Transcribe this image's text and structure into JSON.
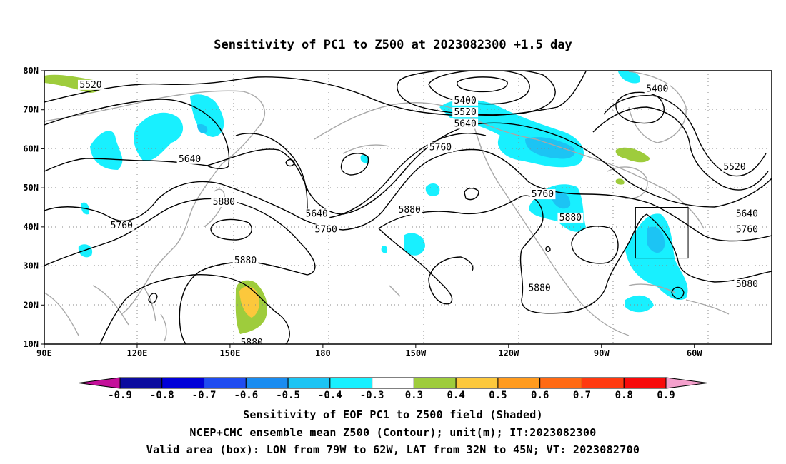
{
  "title": "Sensitivity of PC1 to Z500 at 2023082300 +1.5 day",
  "axes": {
    "lon_ticks": [
      "90E",
      "120E",
      "150E",
      "180",
      "150W",
      "120W",
      "90W",
      "60W"
    ],
    "lon_values": [
      90,
      120,
      150,
      180,
      210,
      240,
      270,
      300
    ],
    "lat_ticks": [
      "80N",
      "70N",
      "60N",
      "50N",
      "40N",
      "30N",
      "20N",
      "10N"
    ],
    "lat_values": [
      80,
      70,
      60,
      50,
      40,
      30,
      20,
      10
    ],
    "lon_range": [
      90,
      325
    ],
    "lat_range": [
      10,
      80
    ],
    "grid": true
  },
  "colorbar": {
    "labels": [
      "-0.9",
      "-0.8",
      "-0.7",
      "-0.6",
      "-0.5",
      "-0.4",
      "-0.3",
      "0.3",
      "0.4",
      "0.5",
      "0.6",
      "0.7",
      "0.8",
      "0.9"
    ],
    "colors": [
      "#0b0b9e",
      "#0000d8",
      "#1f4cf0",
      "#1a8cf0",
      "#1cc4f4",
      "#18f0ff",
      "#ffffff",
      "#9ecc3c",
      "#fcc83c",
      "#ff9b1e",
      "#ff6a14",
      "#ff3a10",
      "#f80a0a"
    ],
    "low_extend_color": "#c4109a",
    "high_extend_color": "#f4a0cc"
  },
  "contour_labels": [
    {
      "text": "5520",
      "lon": 105,
      "lat": 76
    },
    {
      "text": "5640",
      "lon": 137,
      "lat": 57
    },
    {
      "text": "5880",
      "lon": 148,
      "lat": 46
    },
    {
      "text": "5760",
      "lon": 115,
      "lat": 40
    },
    {
      "text": "5880",
      "lon": 155,
      "lat": 31
    },
    {
      "text": "5880",
      "lon": 157,
      "lat": 10
    },
    {
      "text": "5640",
      "lon": 178,
      "lat": 43
    },
    {
      "text": "5760",
      "lon": 181,
      "lat": 39
    },
    {
      "text": "5880",
      "lon": 208,
      "lat": 44
    },
    {
      "text": "5400",
      "lon": 226,
      "lat": 72
    },
    {
      "text": "5520",
      "lon": 226,
      "lat": 69
    },
    {
      "text": "5640",
      "lon": 226,
      "lat": 66
    },
    {
      "text": "5760",
      "lon": 218,
      "lat": 60
    },
    {
      "text": "5760",
      "lon": 251,
      "lat": 48
    },
    {
      "text": "5880",
      "lon": 260,
      "lat": 42
    },
    {
      "text": "5880",
      "lon": 250,
      "lat": 24
    },
    {
      "text": "5400",
      "lon": 288,
      "lat": 75
    },
    {
      "text": "5520",
      "lon": 313,
      "lat": 55
    },
    {
      "text": "5640",
      "lon": 317,
      "lat": 43
    },
    {
      "text": "5760",
      "lon": 317,
      "lat": 39
    },
    {
      "text": "5880",
      "lon": 317,
      "lat": 25
    }
  ],
  "valid_box": {
    "lon_min": 281,
    "lon_max": 298,
    "lat_min": 32,
    "lat_max": 45
  },
  "captions": [
    "Sensitivity of EOF PC1 to Z500 field (Shaded)",
    "NCEP+CMC ensemble mean Z500 (Contour); unit(m); IT:2023082300",
    "Valid area (box): LON from 79W to 62W, LAT from 32N to 45N; VT: 2023082700"
  ]
}
